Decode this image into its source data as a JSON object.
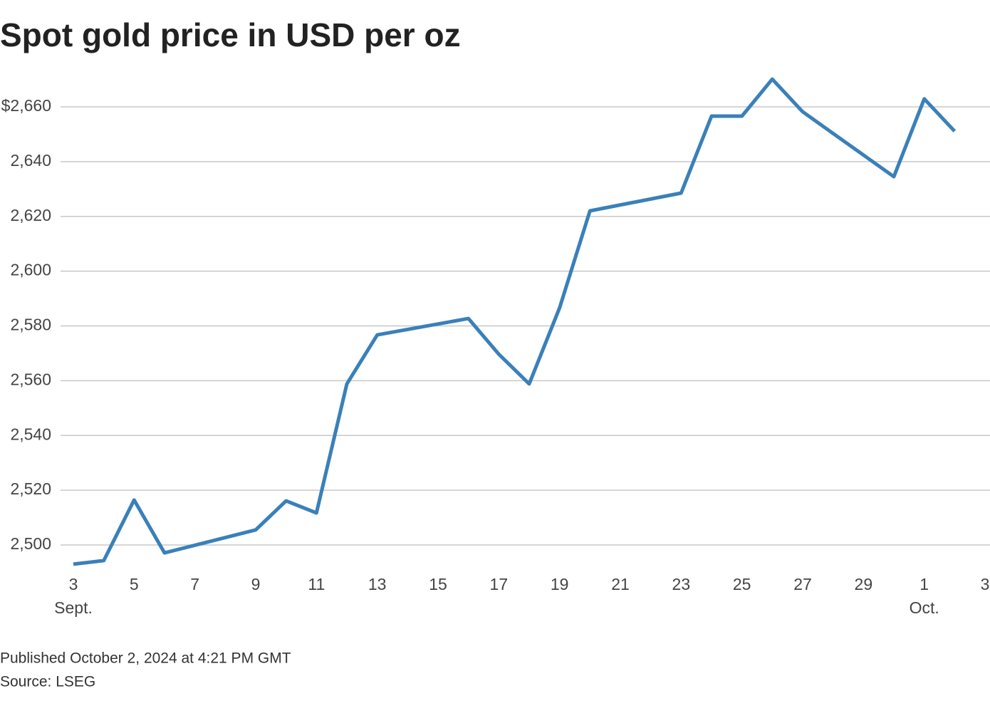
{
  "chart_data": {
    "type": "line",
    "title": "Spot gold price in USD per oz",
    "x": [
      "Sept. 3",
      "Sept. 4",
      "Sept. 5",
      "Sept. 6",
      "Sept. 9",
      "Sept. 10",
      "Sept. 11",
      "Sept. 12",
      "Sept. 13",
      "Sept. 16",
      "Sept. 17",
      "Sept. 18",
      "Sept. 19",
      "Sept. 20",
      "Sept. 23",
      "Sept. 24",
      "Sept. 25",
      "Sept. 26",
      "Sept. 27",
      "Sept. 30",
      "Oct. 1",
      "Oct. 2"
    ],
    "series": [
      {
        "name": "Spot gold",
        "color": "#3a80b9",
        "values": [
          2493.0,
          2494.3,
          2516.4,
          2497.1,
          2505.5,
          2516.1,
          2511.7,
          2558.8,
          2576.7,
          2582.7,
          2569.7,
          2558.8,
          2586.6,
          2622.0,
          2628.5,
          2656.6,
          2656.6,
          2670.1,
          2658.2,
          2634.5,
          2662.9,
          2651.1
        ]
      }
    ],
    "xlim": [
      "Sept. 3",
      "Oct. 3"
    ],
    "xticks": [
      {
        "value": "Sept. 3",
        "label": "3"
      },
      {
        "value": "Sept. 5",
        "label": "5"
      },
      {
        "value": "Sept. 7",
        "label": "7"
      },
      {
        "value": "Sept. 9",
        "label": "9"
      },
      {
        "value": "Sept. 11",
        "label": "11"
      },
      {
        "value": "Sept. 13",
        "label": "13"
      },
      {
        "value": "Sept. 15",
        "label": "15"
      },
      {
        "value": "Sept. 17",
        "label": "17"
      },
      {
        "value": "Sept. 19",
        "label": "19"
      },
      {
        "value": "Sept. 21",
        "label": "21"
      },
      {
        "value": "Sept. 23",
        "label": "23"
      },
      {
        "value": "Sept. 25",
        "label": "25"
      },
      {
        "value": "Sept. 27",
        "label": "27"
      },
      {
        "value": "Sept. 29",
        "label": "29"
      },
      {
        "value": "Oct. 1",
        "label": "1"
      },
      {
        "value": "Oct. 3",
        "label": "3"
      }
    ],
    "x_month_labels": [
      {
        "value": "Sept. 3",
        "label": "Sept."
      },
      {
        "value": "Oct. 1",
        "label": "Oct."
      }
    ],
    "ylim": [
      2490,
      2675
    ],
    "yticks": [
      {
        "value": 2500,
        "label": "2,500"
      },
      {
        "value": 2520,
        "label": "2,520"
      },
      {
        "value": 2540,
        "label": "2,540"
      },
      {
        "value": 2560,
        "label": "2,560"
      },
      {
        "value": 2580,
        "label": "2,580"
      },
      {
        "value": 2600,
        "label": "2,600"
      },
      {
        "value": 2620,
        "label": "2,620"
      },
      {
        "value": 2640,
        "label": "2,640"
      },
      {
        "value": 2660,
        "label": "$2,660"
      }
    ],
    "grid": true,
    "published": "Published October 2, 2024 at 4:21 PM GMT",
    "source": "Source: LSEG"
  }
}
